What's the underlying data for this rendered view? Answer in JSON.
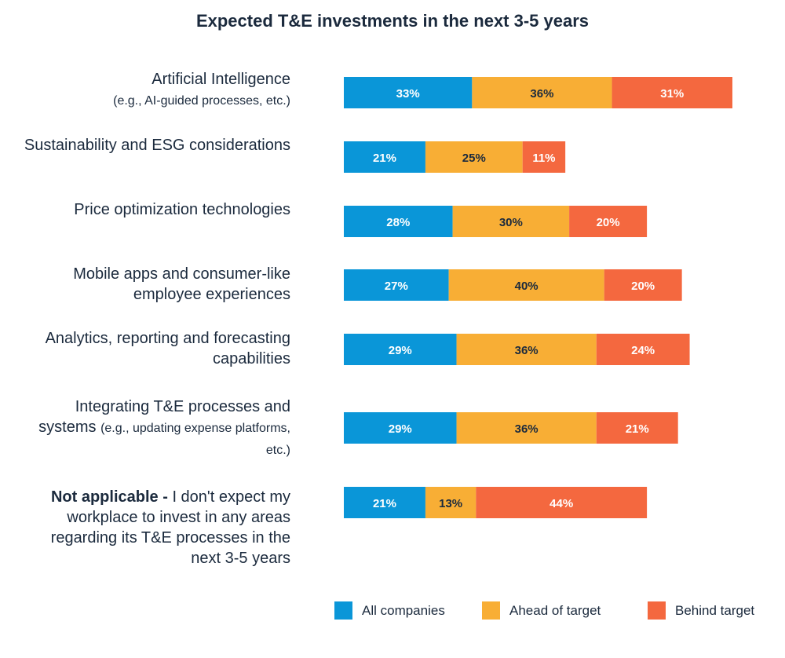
{
  "chart_data": {
    "type": "bar",
    "orientation": "horizontal",
    "stacked": true,
    "title": "Expected T&E investments in the next 3-5 years",
    "categories": [
      {
        "main": "Artificial Intelligence",
        "sub": "(e.g., AI-guided processes, etc.)"
      },
      {
        "main": "Sustainability and ESG considerations",
        "sub": ""
      },
      {
        "main": "Price optimization technologies",
        "sub": ""
      },
      {
        "main": "Mobile apps and consumer-like employee experiences",
        "sub": ""
      },
      {
        "main": "Analytics, reporting and forecasting capabilities",
        "sub": ""
      },
      {
        "main": "Integrating T&E processes and systems",
        "sub": "(e.g., updating expense platforms, etc.)"
      },
      {
        "main": "Not applicable -",
        "sub": "I don't expect my workplace to invest in any areas regarding its T&E processes in the next 3-5 years"
      }
    ],
    "series": [
      {
        "name": "All companies",
        "color": "#0a96d8",
        "values": [
          33,
          21,
          28,
          27,
          29,
          29,
          21
        ]
      },
      {
        "name": "Ahead of target",
        "color": "#f8ae35",
        "values": [
          36,
          25,
          30,
          40,
          36,
          36,
          13
        ]
      },
      {
        "name": "Behind target",
        "color": "#f4683f",
        "values": [
          31,
          11,
          20,
          20,
          24,
          21,
          44
        ]
      }
    ],
    "value_suffix": "%",
    "xlim": [
      0,
      100
    ],
    "xlabel": "",
    "ylabel": "",
    "legend": "bottom-right",
    "grid": false
  },
  "colors": {
    "text": "#1b2a3d",
    "label_on_dark": "#ffffff",
    "label_on_light": "#1b2a3d"
  }
}
